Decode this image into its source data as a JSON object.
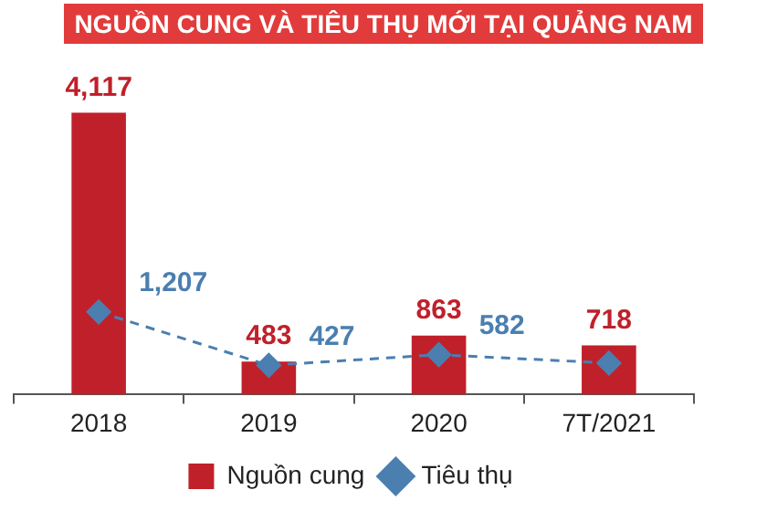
{
  "chart_data": {
    "type": "bar",
    "title": "NGUỒN CUNG VÀ TIÊU THỤ MỚI TẠI QUẢNG NAM",
    "categories": [
      "2018",
      "2019",
      "2020",
      "7T/2021"
    ],
    "series": [
      {
        "name": "Nguồn cung",
        "color": "#c0202a",
        "values": [
          4117,
          483,
          863,
          718
        ],
        "value_labels": [
          "4,117",
          "483",
          "863",
          "718"
        ]
      },
      {
        "name": "Tiêu thụ",
        "type": "line",
        "color": "#4a7fb0",
        "values": [
          1207,
          427,
          582,
          460
        ],
        "value_labels": [
          "1,207",
          "427",
          "582",
          null
        ],
        "marker": "diamond",
        "line_style": "dashed"
      }
    ],
    "data_labels": true,
    "legend": "bottom",
    "grid": false
  }
}
